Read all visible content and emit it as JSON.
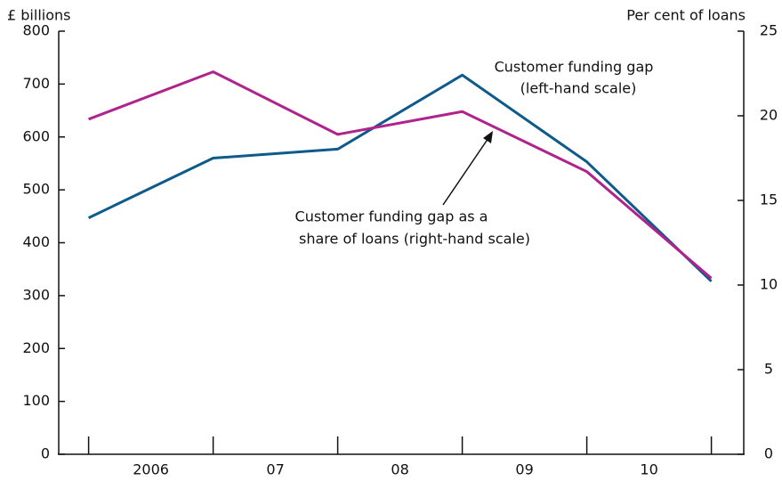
{
  "chart_data": {
    "type": "line",
    "ylabel": "£ billions",
    "y2label": "Per cent of loans",
    "x": [
      2006,
      2007,
      2008,
      2009,
      2010,
      2011
    ],
    "xlim": [
      2005.76,
      2011.26
    ],
    "xticks": [
      {
        "value": 2006.5,
        "label": "2006"
      },
      {
        "value": 2007.5,
        "label": "07"
      },
      {
        "value": 2008.5,
        "label": "08"
      },
      {
        "value": 2009.5,
        "label": "09"
      },
      {
        "value": 2010.5,
        "label": "10"
      }
    ],
    "ylim": [
      0,
      800
    ],
    "yticks": [
      0,
      100,
      200,
      300,
      400,
      500,
      600,
      700,
      800
    ],
    "y2lim": [
      0,
      25
    ],
    "y2ticks": [
      0,
      5,
      10,
      15,
      20,
      25
    ],
    "grid": false,
    "series": [
      {
        "name": [
          "Customer funding gap",
          "(left-hand scale)"
        ],
        "color": "#0e5a8a",
        "values": [
          447,
          560,
          577,
          717,
          553,
          327
        ]
      },
      {
        "name": [
          "Customer funding gap as a",
          "share of loans (right-hand scale)"
        ],
        "color": "#b0228c",
        "axis": "y2",
        "values": [
          19.8,
          22.6,
          18.9,
          20.25,
          16.7,
          10.4
        ]
      }
    ]
  }
}
